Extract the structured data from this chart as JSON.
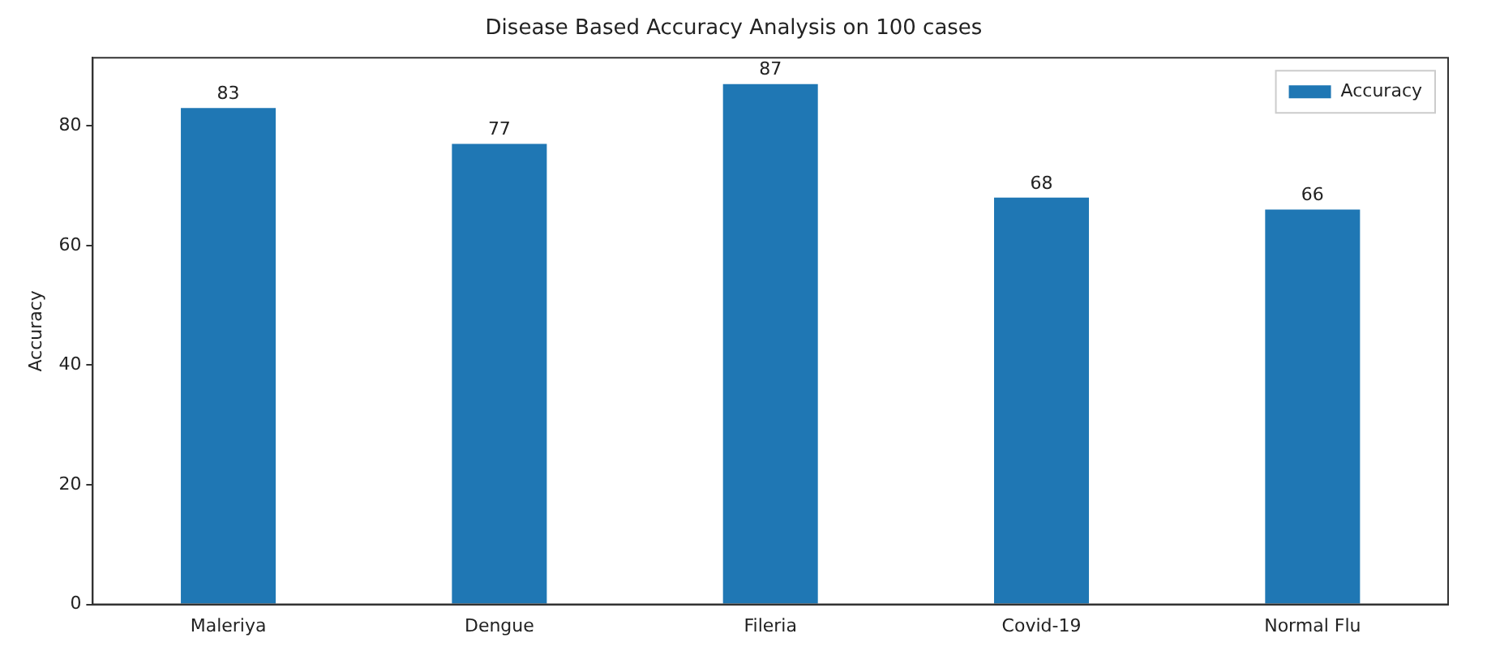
{
  "chart_data": {
    "type": "bar",
    "title": "Disease Based Accuracy Analysis on 100 cases",
    "ylabel": "Accuracy",
    "categories": [
      "Maleriya",
      "Dengue",
      "Fileria",
      "Covid-19",
      "Normal Flu"
    ],
    "series": [
      {
        "name": "Accuracy",
        "color": "#1f77b4",
        "values": [
          83,
          77,
          87,
          68,
          66
        ]
      }
    ],
    "ylim": [
      0,
      91.4
    ],
    "yticks": [
      0,
      20,
      40,
      60,
      80
    ],
    "grid": false,
    "legend": "top right",
    "data_labels": true
  }
}
